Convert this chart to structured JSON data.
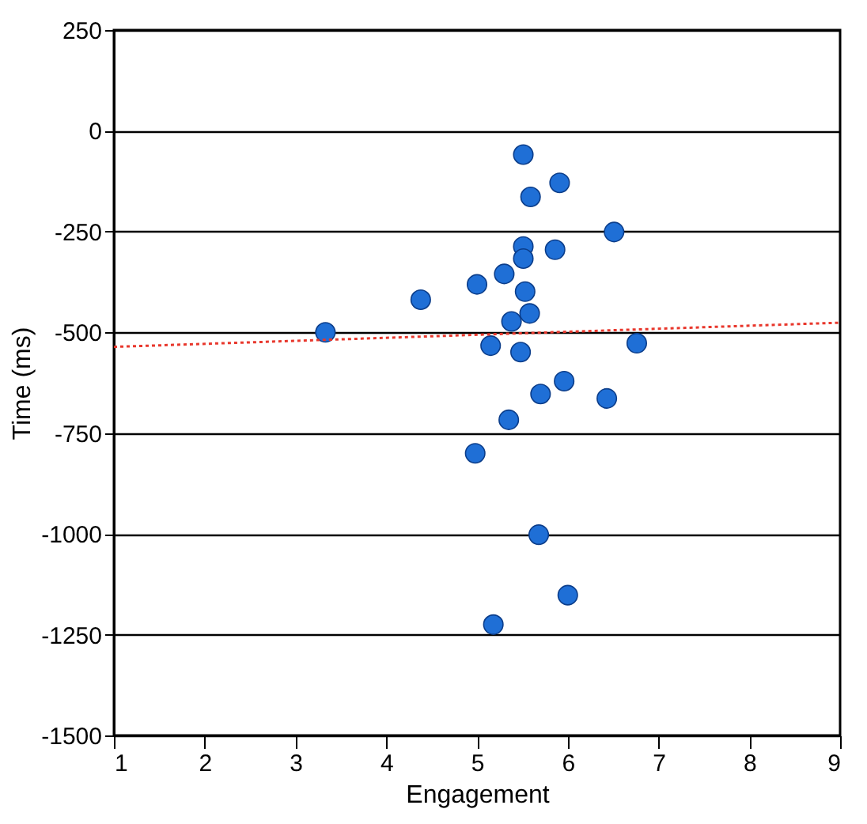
{
  "chart_data": {
    "type": "scatter",
    "xlabel": "Engagement",
    "ylabel": "Time  (ms)",
    "xlim": [
      1,
      9
    ],
    "xticks": [
      1,
      2,
      3,
      4,
      5,
      6,
      7,
      8,
      9
    ],
    "ylim": [
      -1500,
      250
    ],
    "yticks": [
      -1500,
      -1250,
      -1000,
      -750,
      -500,
      -250,
      0,
      250
    ],
    "grid": "y",
    "series": [
      {
        "color": "#1f6fd6",
        "marker": "circle",
        "x": [
          5.51,
          5.91,
          5.59,
          6.51,
          5.51,
          5.51,
          5.86,
          5.3,
          5.0,
          5.53,
          4.38,
          5.58,
          5.38,
          3.33,
          5.15,
          5.48,
          6.76,
          5.96,
          5.7,
          6.43,
          5.35,
          4.98,
          5.68,
          6.0,
          5.18
        ],
        "values": [
          -59,
          -129,
          -164,
          -251,
          -287,
          -317,
          -295,
          -355,
          -381,
          -399,
          -419,
          -453,
          -473,
          -500,
          -533,
          -549,
          -527,
          -621,
          -653,
          -664,
          -717,
          -800,
          -1002,
          -1152,
          -1225
        ]
      },
      {
        "type": "line",
        "color": "#e8372c",
        "line_style": "dotted",
        "marker": "none",
        "x": [
          1,
          9
        ],
        "values": [
          -536,
          -476
        ]
      }
    ]
  }
}
